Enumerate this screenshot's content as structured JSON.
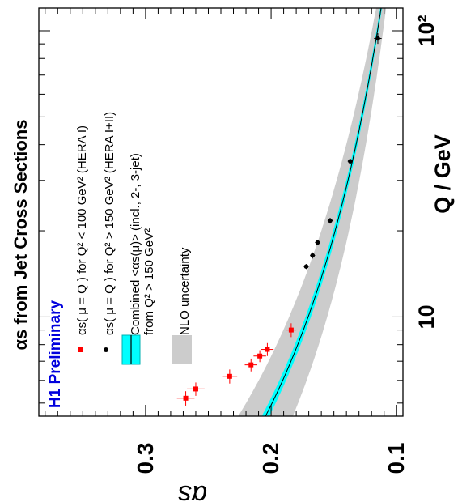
{
  "chart_data": {
    "type": "scatter",
    "rotated": "figure rotated 90 degrees counter-clockwise; Q axis runs top-to-bottom, alpha_s axis runs left-to-right (decreasing)",
    "title": "αs from Jet Cross Sections",
    "badge": "H1 Preliminary",
    "xlabel": "Q / GeV",
    "ylabel": "αs",
    "x_scale": "log",
    "xlim": [
      4.5,
      120
    ],
    "ylim": [
      0.095,
      0.385
    ],
    "x_ticks": [
      {
        "value": 10,
        "label": "10"
      },
      {
        "value": 100,
        "label": "10²"
      }
    ],
    "y_ticks": [
      {
        "value": 0.1,
        "label": "0.1"
      },
      {
        "value": 0.2,
        "label": "0.2"
      },
      {
        "value": 0.3,
        "label": "0.3"
      }
    ],
    "legend": [
      {
        "marker": "red-square",
        "label": "αs( μ = Q ) for Q² < 100 GeV² (HERA I)"
      },
      {
        "marker": "black-dot",
        "label": "αs( μ = Q ) for Q² > 150 GeV² (HERA I+II)"
      },
      {
        "marker": "cyan-band",
        "label": "Combined <αs(μ)> (incl., 2-, 3-jet)",
        "label2": "from Q² > 150 GeV²"
      },
      {
        "marker": "grey-band",
        "label": "NLO uncertainty"
      }
    ],
    "series": [
      {
        "name": "αs( μ = Q ) for Q² < 100 GeV² (HERA I)",
        "color": "#ff0000",
        "points": [
          {
            "x": 5.2,
            "y": 0.268,
            "xerr": 0.3,
            "yerr": 0.007
          },
          {
            "x": 5.6,
            "y": 0.26,
            "xerr": 0.3,
            "yerr": 0.007
          },
          {
            "x": 6.2,
            "y": 0.233,
            "xerr": 0.35,
            "yerr": 0.006
          },
          {
            "x": 6.8,
            "y": 0.216,
            "xerr": 0.35,
            "yerr": 0.005
          },
          {
            "x": 7.3,
            "y": 0.209,
            "xerr": 0.35,
            "yerr": 0.005
          },
          {
            "x": 7.7,
            "y": 0.203,
            "xerr": 0.4,
            "yerr": 0.005
          },
          {
            "x": 9.0,
            "y": 0.184,
            "xerr": 0.5,
            "yerr": 0.004
          }
        ]
      },
      {
        "name": "αs( μ = Q ) for Q² > 150 GeV² (HERA I+II)",
        "color": "#000000",
        "points": [
          {
            "x": 15.0,
            "y": 0.172,
            "xerr": 0.3,
            "yerr": 0.002
          },
          {
            "x": 16.4,
            "y": 0.167,
            "xerr": 0.4,
            "yerr": 0.002
          },
          {
            "x": 18.2,
            "y": 0.163,
            "xerr": 0.4,
            "yerr": 0.002
          },
          {
            "x": 21.7,
            "y": 0.153,
            "xerr": 0.5,
            "yerr": 0.002
          },
          {
            "x": 35.0,
            "y": 0.137,
            "xerr": 0.7,
            "yerr": 0.002
          },
          {
            "x": 94.0,
            "y": 0.115,
            "xerr": 4.0,
            "yerr": 0.003
          }
        ]
      }
    ],
    "fit_curve": {
      "alpha_ref": 0.1168,
      "q_ref": 91.19,
      "b0": 0.61,
      "color": "#00cccc",
      "band_color": "#00ffff"
    },
    "nlo_band": {
      "color": "#cccccc"
    }
  }
}
